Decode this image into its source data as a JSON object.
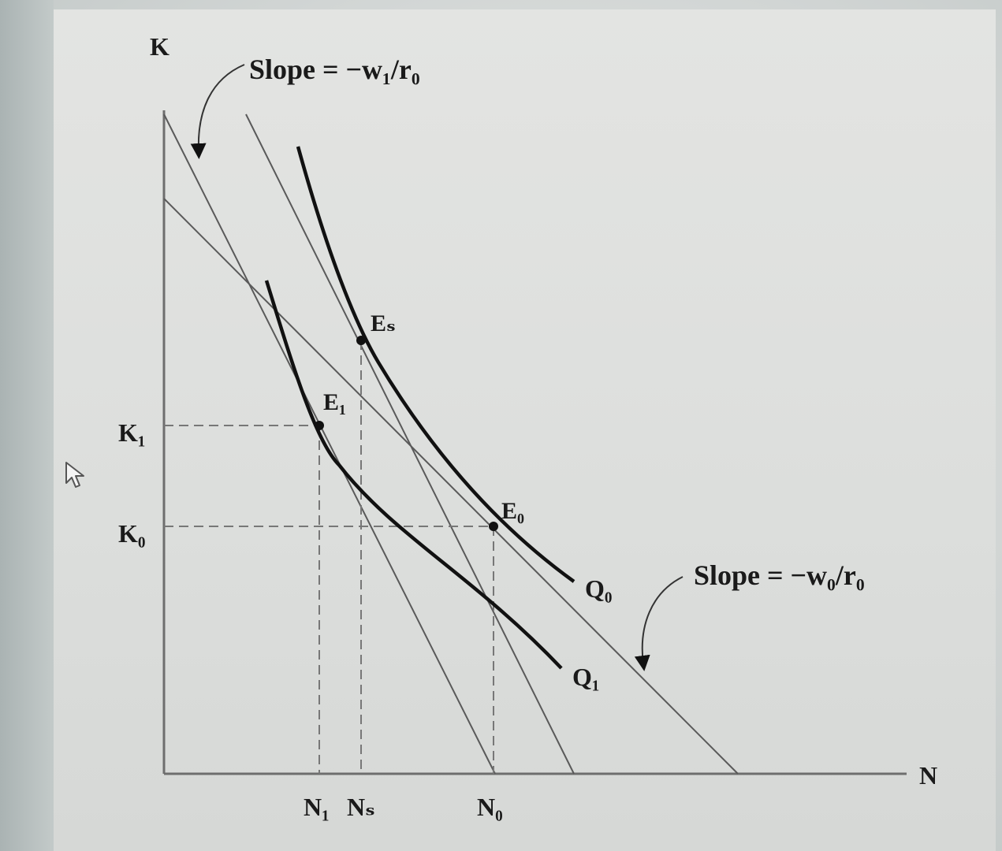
{
  "axes": {
    "y_label": "K",
    "x_label": "N"
  },
  "annotations": {
    "slope_top": "Slope = −w₁/r₀",
    "slope_bottom": "Slope = −w₀/r₀"
  },
  "points": {
    "es": "Eₛ",
    "e1": "E₁",
    "e0": "E₀"
  },
  "curves": {
    "q0": "Q₀",
    "q1": "Q₁"
  },
  "y_ticks": {
    "k1": "K₁",
    "k0": "K₀"
  },
  "x_ticks": {
    "n1": "N₁",
    "ns": "Nₛ",
    "n0": "N₀"
  },
  "colors": {
    "curve": "#111111",
    "budget_line": "#5a5a5a",
    "dashed": "#777777"
  },
  "icons": {
    "cursor": "mouse-pointer-icon"
  }
}
